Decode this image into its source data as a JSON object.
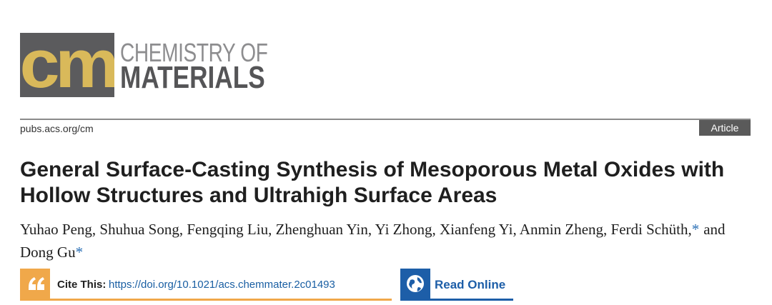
{
  "logo": {
    "mark": "cm",
    "line1": "CHEMISTRY OF",
    "line2": "MATERIALS"
  },
  "header": {
    "url": "pubs.acs.org/cm",
    "article_type": "Article"
  },
  "article": {
    "title": "General Surface-Casting Synthesis of Mesoporous Metal Oxides with Hollow Structures and Ultrahigh Surface Areas",
    "authors": [
      {
        "text": "Yuhao Peng, Shuhua Song, Fengqing Liu, Zhenghuan Yin, Yi Zhong, Xianfeng Yi, Anmin Zheng, Ferdi Schüth,",
        "corresponding": false
      },
      {
        "text": "*",
        "corresponding": true
      },
      {
        "text": "and Dong Gu",
        "corresponding": false
      },
      {
        "text": "*",
        "corresponding": true
      }
    ]
  },
  "cite": {
    "label": "Cite This:",
    "doi": "https://doi.org/10.1021/acs.chemmater.2c01493"
  },
  "read_online": {
    "label": "Read Online"
  }
}
